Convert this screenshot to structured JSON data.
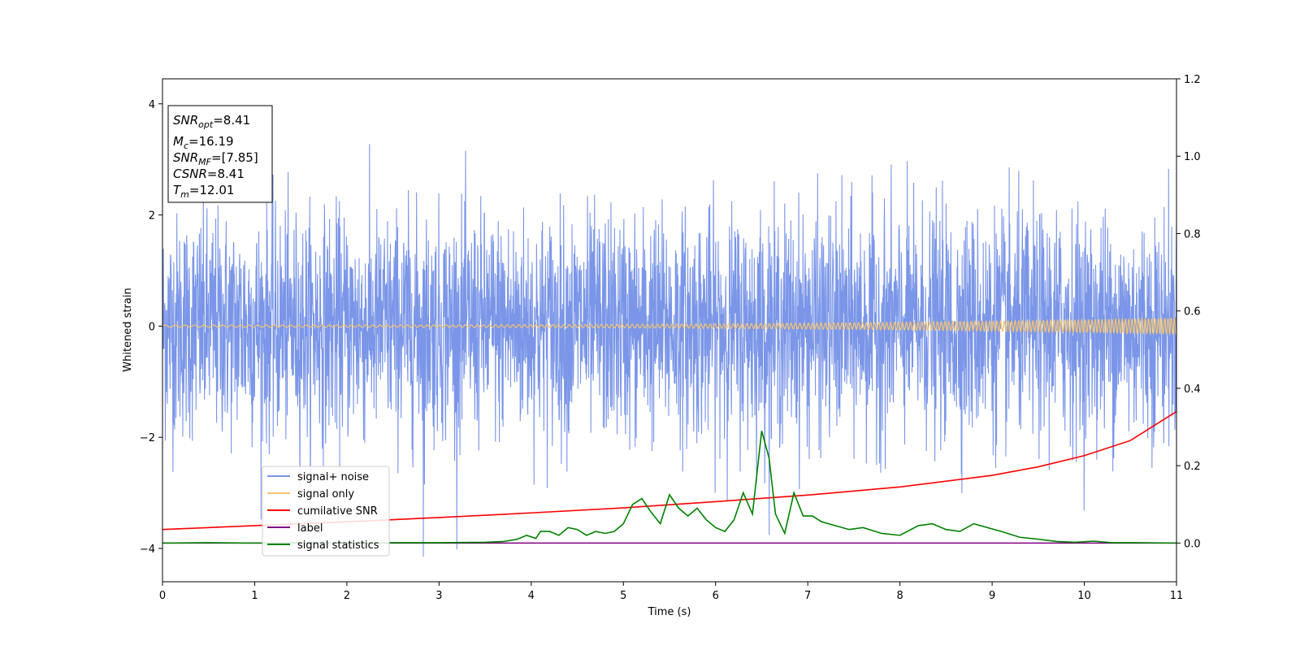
{
  "chart_data": {
    "type": "line",
    "xlabel": "Time (s)",
    "ylabel": "Whitened strain",
    "xlim": [
      0,
      11
    ],
    "ylim": [
      -4.6,
      4.45
    ],
    "y2lim": [
      -0.1,
      1.2
    ],
    "x_ticks": [
      "0",
      "1",
      "2",
      "3",
      "4",
      "5",
      "6",
      "7",
      "8",
      "9",
      "10",
      "11"
    ],
    "y_ticks": [
      "−4",
      "−2",
      "0",
      "2",
      "4"
    ],
    "y2_ticks": [
      "0.0",
      "0.2",
      "0.4",
      "0.6",
      "0.8",
      "1.0",
      "1.2"
    ],
    "legend_position": "lower-left",
    "annotation": [
      {
        "base": "SNR",
        "sub": "opt",
        "rest": "=8.41"
      },
      {
        "base": "M",
        "sub": "c",
        "rest": "=16.19"
      },
      {
        "base": "SNR",
        "sub": "MF",
        "rest": "=[7.85]"
      },
      {
        "base": "CSNR",
        "sub": "",
        "rest": "=8.41"
      },
      {
        "base": "T",
        "sub": "m",
        "rest": "=12.01"
      }
    ],
    "series": [
      {
        "name": "signal+ noise",
        "color": "#7b96e8",
        "axis": "left",
        "description_values": {
          "amplitude_typical": 2.3,
          "peak_max": 3.9,
          "peak_min": -4.15,
          "peak_min_x": 2.83
        }
      },
      {
        "name": "signal only",
        "color": "#f5c46f",
        "axis": "left",
        "amplitude_start": 0.02,
        "amplitude_end": 0.15
      },
      {
        "name": "cumilative SNR",
        "color": "#ff0000",
        "axis": "right",
        "x": [
          0,
          1,
          2,
          3,
          4,
          5,
          6,
          7,
          8,
          9,
          9.5,
          10,
          10.5,
          11
        ],
        "y": [
          0.035,
          0.045,
          0.055,
          0.066,
          0.078,
          0.091,
          0.107,
          0.124,
          0.145,
          0.175,
          0.197,
          0.226,
          0.265,
          0.34
        ]
      },
      {
        "name": "label",
        "color": "#800080",
        "axis": "right",
        "x": [
          0,
          11
        ],
        "y": [
          0,
          0
        ]
      },
      {
        "name": "signal statistics",
        "color": "#008000",
        "axis": "right",
        "x": [
          0,
          0.5,
          1,
          1.5,
          2,
          2.5,
          3,
          3.5,
          3.7,
          3.85,
          3.95,
          4.05,
          4.1,
          4.2,
          4.3,
          4.4,
          4.5,
          4.6,
          4.7,
          4.8,
          4.9,
          5.0,
          5.1,
          5.2,
          5.3,
          5.4,
          5.5,
          5.6,
          5.7,
          5.8,
          5.9,
          6.0,
          6.1,
          6.2,
          6.3,
          6.4,
          6.5,
          6.58,
          6.65,
          6.75,
          6.85,
          6.95,
          7.05,
          7.15,
          7.3,
          7.45,
          7.6,
          7.8,
          8.0,
          8.2,
          8.35,
          8.5,
          8.65,
          8.8,
          8.95,
          9.1,
          9.3,
          9.5,
          9.7,
          9.9,
          10.1,
          10.3,
          10.5,
          11
        ],
        "y": [
          0.0,
          0.001,
          0.0,
          0.001,
          0.0,
          0.001,
          0.001,
          0.002,
          0.004,
          0.01,
          0.02,
          0.012,
          0.03,
          0.03,
          0.02,
          0.04,
          0.035,
          0.02,
          0.03,
          0.025,
          0.03,
          0.05,
          0.1,
          0.115,
          0.08,
          0.05,
          0.125,
          0.09,
          0.07,
          0.09,
          0.06,
          0.04,
          0.03,
          0.06,
          0.13,
          0.075,
          0.29,
          0.22,
          0.075,
          0.025,
          0.13,
          0.07,
          0.07,
          0.055,
          0.045,
          0.035,
          0.04,
          0.025,
          0.02,
          0.045,
          0.05,
          0.035,
          0.03,
          0.05,
          0.04,
          0.03,
          0.015,
          0.01,
          0.004,
          0.002,
          0.005,
          0.001,
          0.001,
          0.0
        ]
      }
    ]
  }
}
